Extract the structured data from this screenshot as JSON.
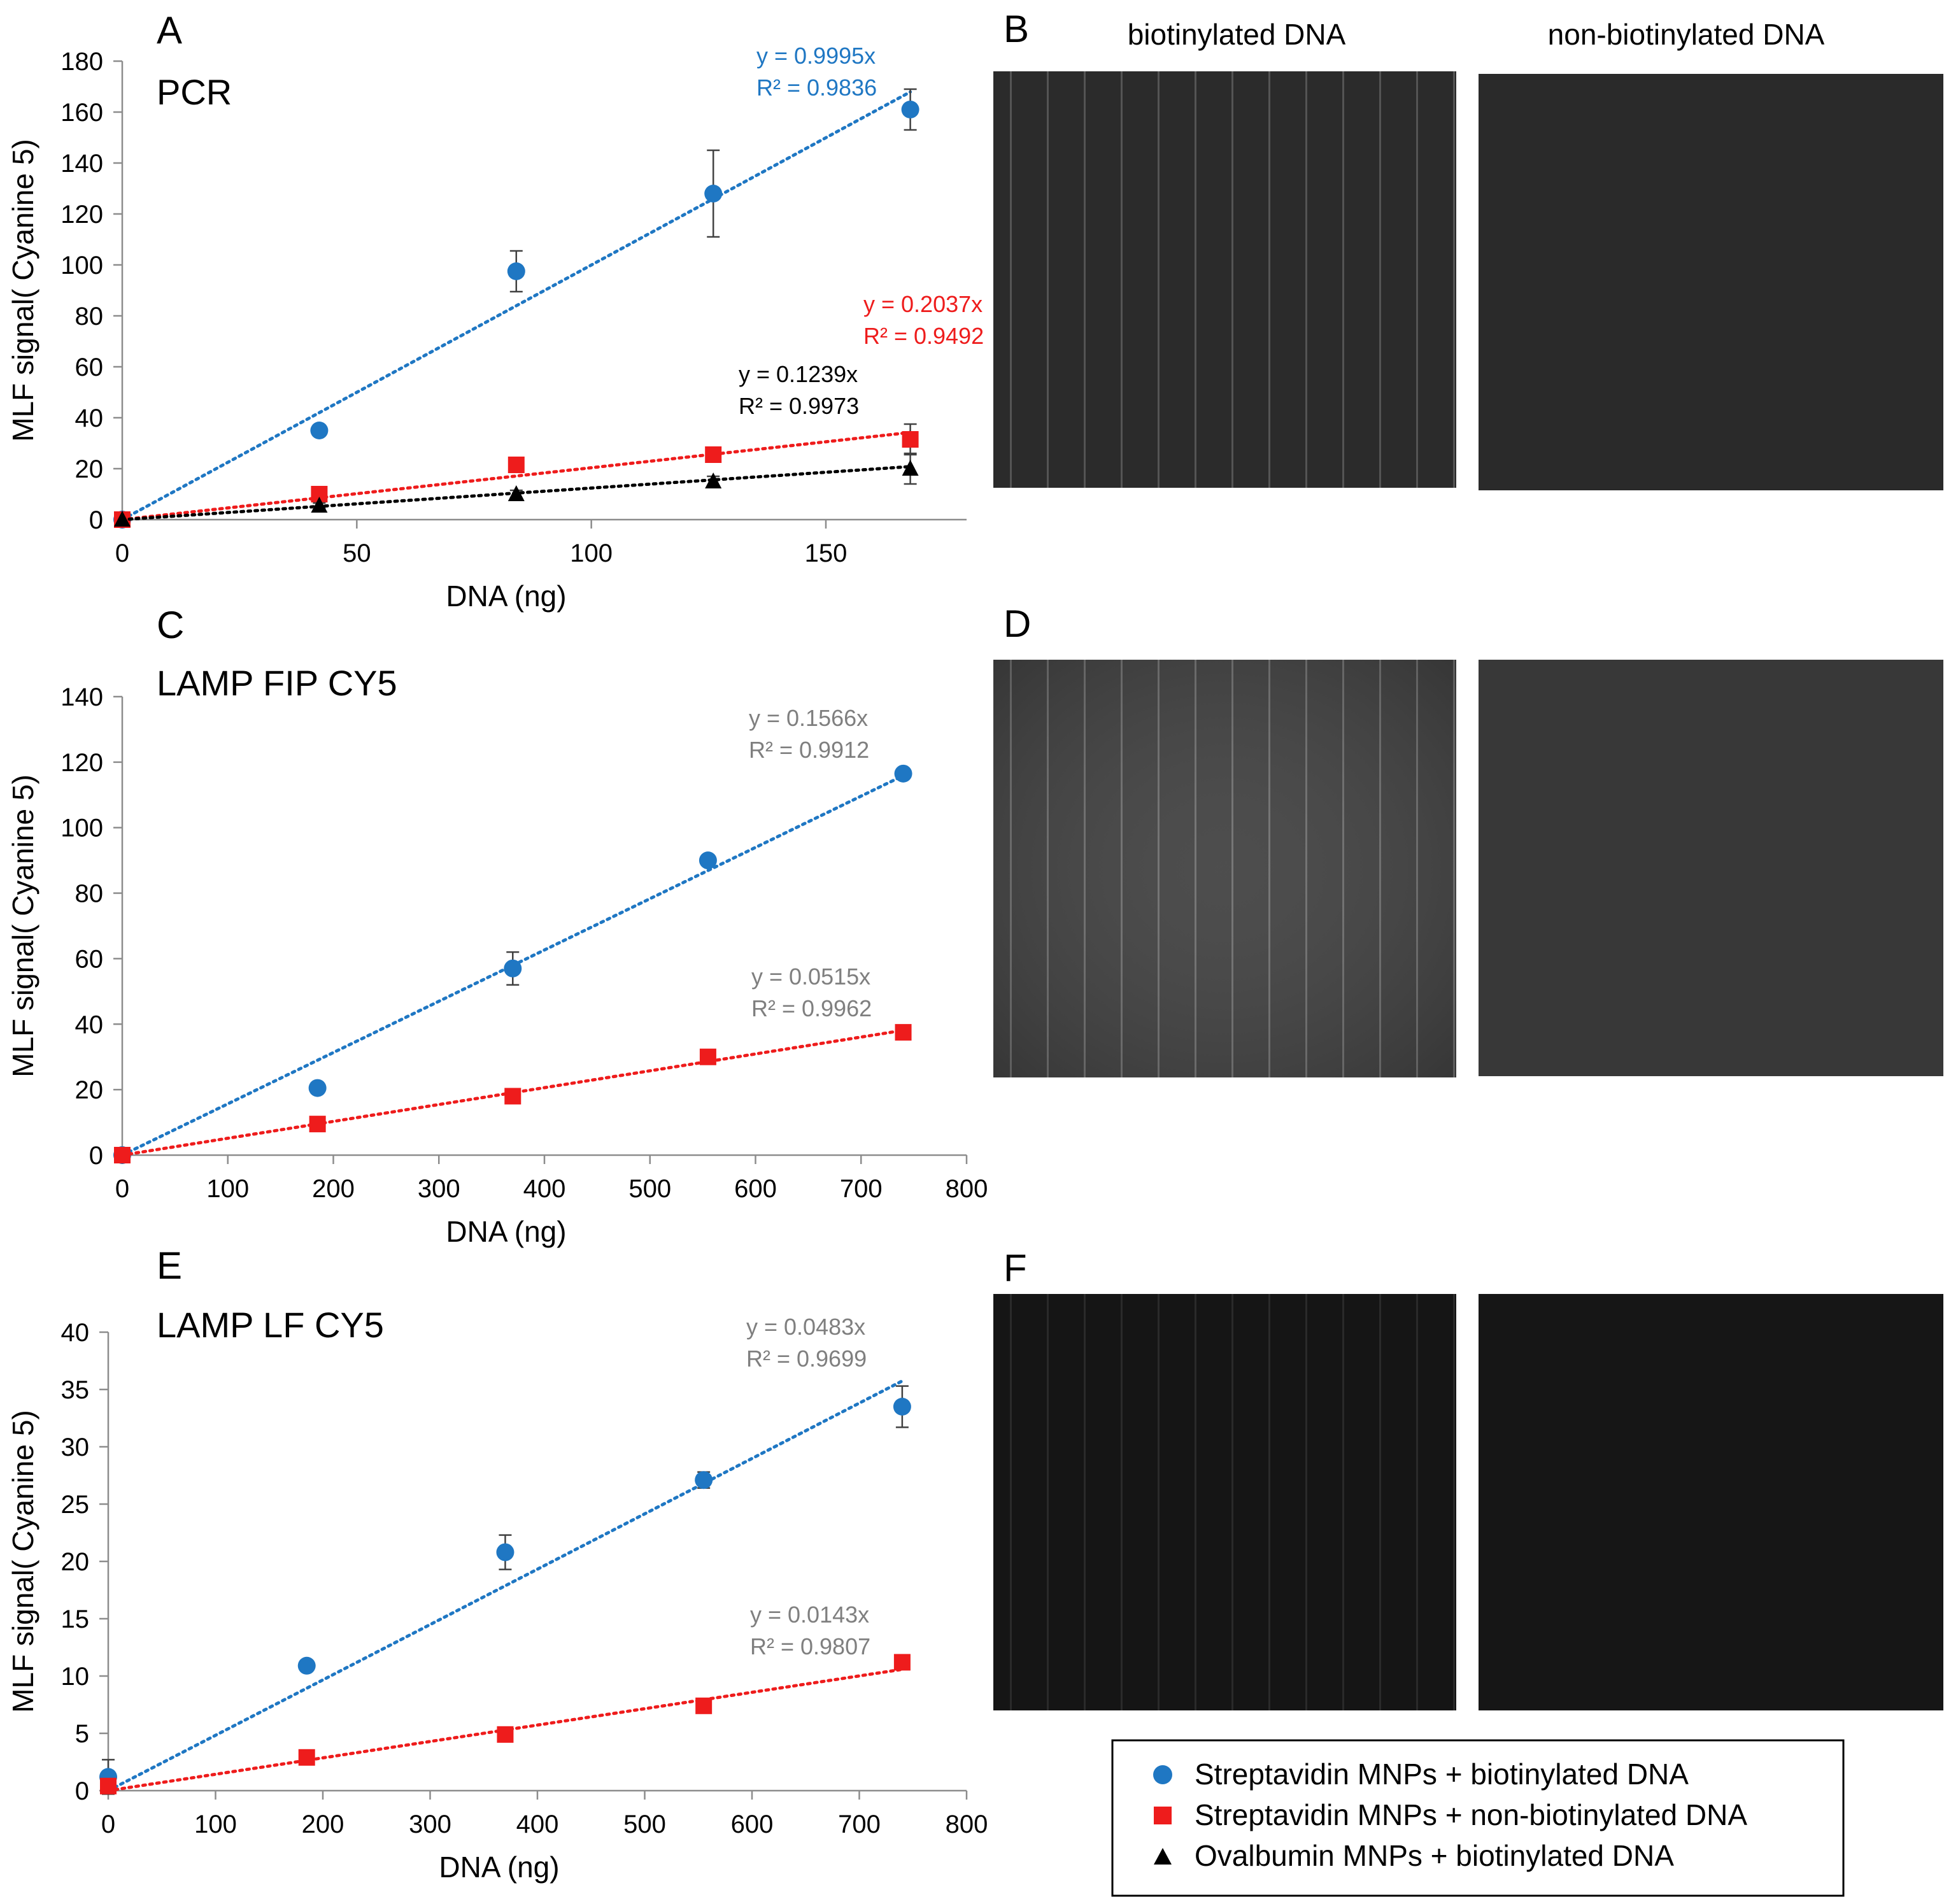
{
  "panels": {
    "B": {
      "letter": "B"
    },
    "D": {
      "letter": "D"
    },
    "F": {
      "letter": "F"
    }
  },
  "image_headers": {
    "biotinylated": "biotinylated DNA",
    "non_biotinylated": "non-biotinylated DNA"
  },
  "legend": {
    "items": [
      {
        "label": "Streptavidin MNPs + biotinylated DNA",
        "marker": "circle",
        "color": "#1F77C3"
      },
      {
        "label": "Streptavidin MNPs + non-biotinylated DNA",
        "marker": "square",
        "color": "#EE1C1C"
      },
      {
        "label": "Ovalbumin MNPs + biotinylated DNA",
        "marker": "triangle",
        "color": "#000000"
      }
    ]
  },
  "micrographs": [
    {
      "panel": "B",
      "condition": "biotinylated",
      "tone": "dark-gray-stripes"
    },
    {
      "panel": "B",
      "condition": "non-biotinylated",
      "tone": "dark-gray-uniform"
    },
    {
      "panel": "D",
      "condition": "biotinylated",
      "tone": "gray-stripes"
    },
    {
      "panel": "D",
      "condition": "non-biotinylated",
      "tone": "gray-uniform"
    },
    {
      "panel": "F",
      "condition": "biotinylated",
      "tone": "near-black-stripes"
    },
    {
      "panel": "F",
      "condition": "non-biotinylated",
      "tone": "near-black-uniform"
    }
  ],
  "chart_data": [
    {
      "panel": "A",
      "type": "scatter",
      "title": "PCR",
      "xlabel": "DNA (ng)",
      "ylabel": "MLF signal( Cyanine 5)",
      "xlim": [
        0,
        180
      ],
      "ylim": [
        0,
        180
      ],
      "xticks": [
        0,
        50,
        100,
        150
      ],
      "yticks": [
        0,
        20,
        40,
        60,
        80,
        100,
        120,
        140,
        160,
        180
      ],
      "series": [
        {
          "marker": "circle",
          "color": "#1F77C3",
          "x": [
            0,
            42,
            84,
            126,
            168
          ],
          "y": [
            0,
            35,
            97.5,
            128,
            161
          ],
          "err": [
            0,
            1.5,
            8,
            17,
            8
          ],
          "fit_slope": 0.9995,
          "equation": "y = 0.9995x",
          "r2": "R² = 0.9836"
        },
        {
          "marker": "square",
          "color": "#EE1C1C",
          "x": [
            0,
            42,
            84,
            126,
            168
          ],
          "y": [
            0,
            10,
            21.5,
            25.5,
            31.5
          ],
          "err": [
            0,
            1,
            1.5,
            2,
            6
          ],
          "fit_slope": 0.2037,
          "equation": "y = 0.2037x",
          "r2": "R² = 0.9492"
        },
        {
          "marker": "triangle",
          "color": "#000000",
          "x": [
            0,
            42,
            84,
            126,
            168
          ],
          "y": [
            0,
            5.5,
            10,
            15,
            20
          ],
          "err": [
            0,
            1,
            1.5,
            2,
            6
          ],
          "fit_slope": 0.1239,
          "equation": "y = 0.1239x",
          "r2": "R² = 0.9973"
        }
      ]
    },
    {
      "panel": "C",
      "type": "scatter",
      "title": "LAMP FIP CY5",
      "xlabel": "DNA (ng)",
      "ylabel": "MLF signal( Cyanine 5)",
      "xlim": [
        0,
        800
      ],
      "ylim": [
        0,
        140
      ],
      "xticks": [
        0,
        100,
        200,
        300,
        400,
        500,
        600,
        700,
        800
      ],
      "yticks": [
        0,
        20,
        40,
        60,
        80,
        100,
        120,
        140
      ],
      "series": [
        {
          "marker": "circle",
          "color": "#1F77C3",
          "x": [
            0,
            185,
            370,
            555,
            740
          ],
          "y": [
            0,
            20.5,
            57,
            90,
            116.5
          ],
          "err": [
            0,
            0.8,
            5,
            1.5,
            1
          ],
          "fit_slope": 0.1566,
          "equation": "y = 0.1566x",
          "r2": "R² = 0.9912"
        },
        {
          "marker": "square",
          "color": "#EE1C1C",
          "x": [
            0,
            185,
            370,
            555,
            740
          ],
          "y": [
            0,
            9.5,
            18,
            30,
            37.5
          ],
          "err": [
            0,
            1,
            1,
            1,
            1
          ],
          "fit_slope": 0.0515,
          "equation": "y = 0.0515x",
          "r2": "R² = 0.9962"
        }
      ]
    },
    {
      "panel": "E",
      "type": "scatter",
      "title": "LAMP LF CY5",
      "xlabel": "DNA (ng)",
      "ylabel": "MLF signal( Cyanine 5)",
      "xlim": [
        0,
        800
      ],
      "ylim": [
        0,
        40
      ],
      "xticks": [
        0,
        100,
        200,
        300,
        400,
        500,
        600,
        700,
        800
      ],
      "yticks": [
        0,
        5,
        10,
        15,
        20,
        25,
        30,
        35,
        40
      ],
      "series": [
        {
          "marker": "circle",
          "color": "#1F77C3",
          "x": [
            0,
            185,
            370,
            555,
            740
          ],
          "y": [
            1.2,
            10.9,
            20.8,
            27.1,
            33.5
          ],
          "err": [
            1.5,
            0.2,
            1.5,
            0.7,
            1.8
          ],
          "fit_slope": 0.0483,
          "equation": "y = 0.0483x",
          "r2": "R² = 0.9699"
        },
        {
          "marker": "square",
          "color": "#EE1C1C",
          "x": [
            0,
            185,
            370,
            555,
            740
          ],
          "y": [
            0.4,
            2.9,
            4.9,
            7.4,
            11.2
          ],
          "err": [
            0.2,
            0.2,
            0.6,
            0.3,
            0.3
          ],
          "fit_slope": 0.0143,
          "equation": "y = 0.0143x",
          "r2": "R² = 0.9807"
        }
      ]
    }
  ]
}
